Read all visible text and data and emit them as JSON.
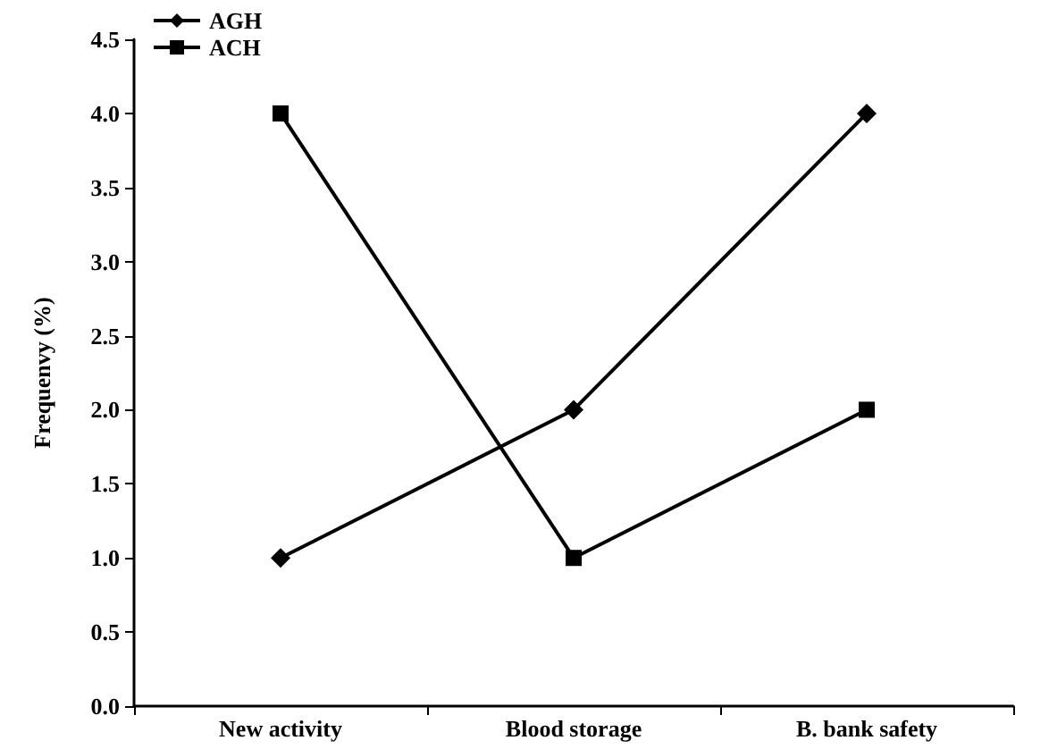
{
  "chart_data": {
    "type": "line",
    "ylabel": "Frequenvy (%)",
    "categories": [
      "New activity",
      "Blood storage",
      "B. bank safety"
    ],
    "series": [
      {
        "name": "AGH",
        "color": "#000000",
        "marker": "diamond",
        "values": [
          1,
          2,
          4
        ]
      },
      {
        "name": "ACH",
        "color": "#000000",
        "marker": "square",
        "values": [
          4,
          1,
          2
        ]
      }
    ],
    "ylim": [
      0,
      4.5
    ],
    "yticks": [
      {
        "value": 0,
        "label": "0.0"
      },
      {
        "value": 0.5,
        "label": "0.5"
      },
      {
        "value": 1,
        "label": "1.0"
      },
      {
        "value": 1.5,
        "label": "1.5"
      },
      {
        "value": 2,
        "label": "2.0"
      },
      {
        "value": 2.5,
        "label": "2.5"
      },
      {
        "value": 3,
        "label": "3.0"
      },
      {
        "value": 3.5,
        "label": "3.5"
      },
      {
        "value": 4,
        "label": "4.0"
      },
      {
        "value": 4.5,
        "label": "4.5"
      }
    ],
    "grid": false,
    "legend": "top left",
    "line_style": "solid"
  }
}
